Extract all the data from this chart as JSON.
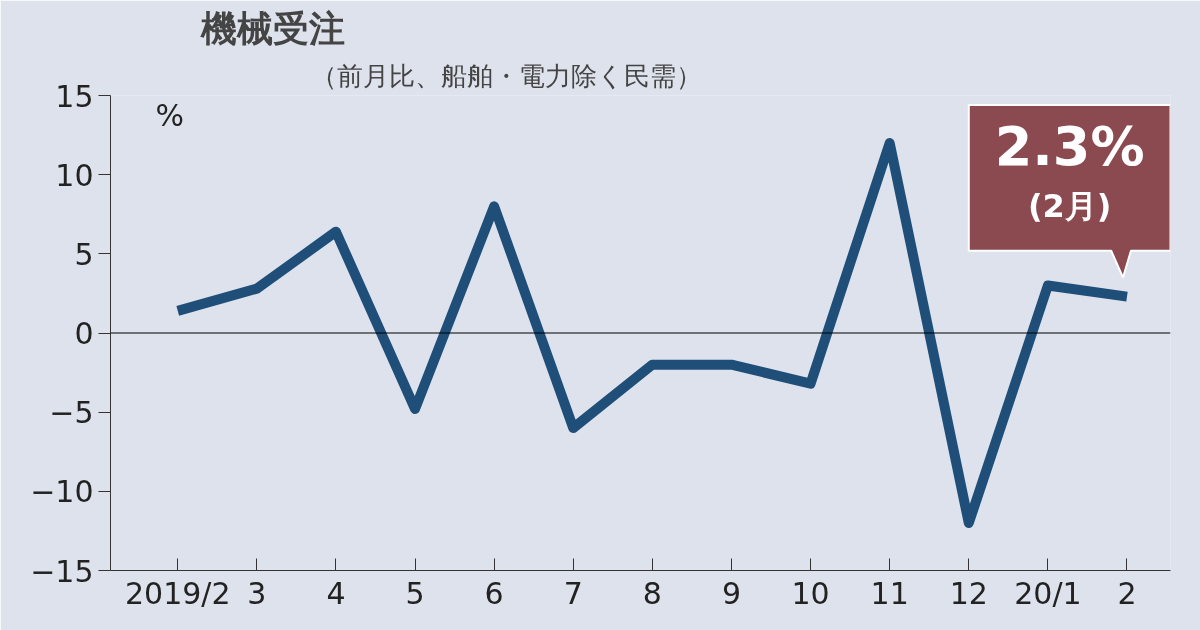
{
  "chart_data": {
    "type": "line",
    "title": "機械受注",
    "subtitle": "（前月比、船舶・電力除く民需）",
    "ylabel": "%",
    "categories": [
      "2019/2",
      "3",
      "4",
      "5",
      "6",
      "7",
      "8",
      "9",
      "10",
      "11",
      "12",
      "20/1",
      "2"
    ],
    "series": [
      {
        "color": "#1f4e79",
        "values": [
          1.4,
          2.8,
          6.4,
          -4.8,
          8.0,
          -6.0,
          -2.0,
          -2.0,
          -3.2,
          12.0,
          -12.0,
          3.0,
          2.3
        ]
      }
    ],
    "ylim": [
      -15,
      15
    ],
    "yticks": [
      -15,
      -10,
      -5,
      0,
      5,
      10,
      15
    ],
    "ref_lines": [
      {
        "axis": "y",
        "value": 0,
        "color": "#000000"
      }
    ],
    "annotations": [
      {
        "text": "2.3%\n(2月)",
        "x": "2",
        "y": 2.3
      }
    ],
    "grid": false
  }
}
